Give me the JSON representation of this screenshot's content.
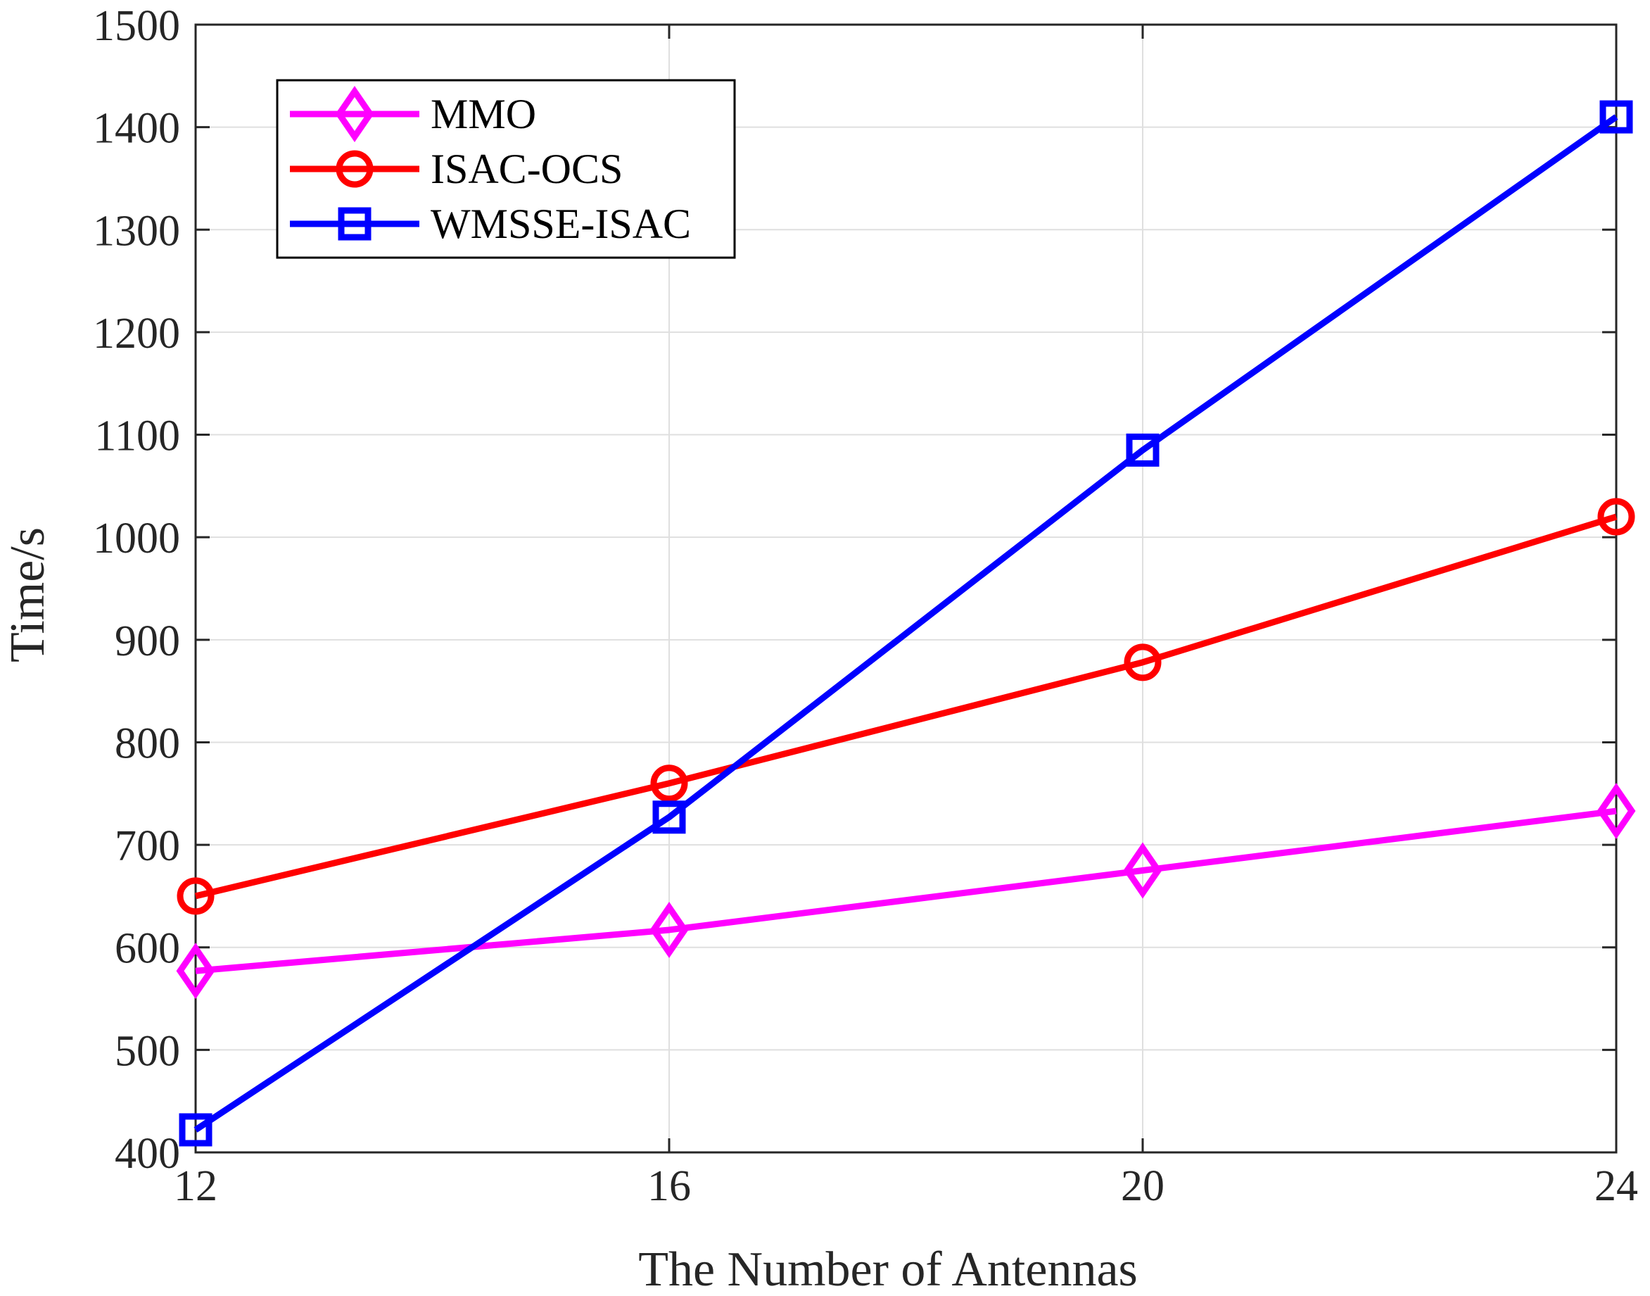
{
  "chart_data": {
    "type": "line",
    "title": "",
    "xlabel": "The Number of Antennas",
    "ylabel": "Time/s",
    "x": [
      12,
      16,
      20,
      24
    ],
    "x_ticks": [
      "12",
      "16",
      "20",
      "24"
    ],
    "xlim": [
      12,
      24
    ],
    "ylim": [
      400,
      1500
    ],
    "y_ticks": [
      "400",
      "500",
      "600",
      "700",
      "800",
      "900",
      "1000",
      "1100",
      "1200",
      "1300",
      "1400",
      "1500"
    ],
    "grid": true,
    "legend_position": "top-left",
    "series": [
      {
        "name": "MMO",
        "marker": "diamond",
        "color": "#ff00ff",
        "values": [
          577,
          617,
          675,
          733
        ]
      },
      {
        "name": "ISAC-OCS",
        "marker": "circle",
        "color": "#ff0000",
        "values": [
          650,
          760,
          878,
          1020
        ]
      },
      {
        "name": "WMSSE-ISAC",
        "marker": "square",
        "color": "#0000ff",
        "values": [
          422,
          727,
          1085,
          1410
        ]
      }
    ]
  }
}
